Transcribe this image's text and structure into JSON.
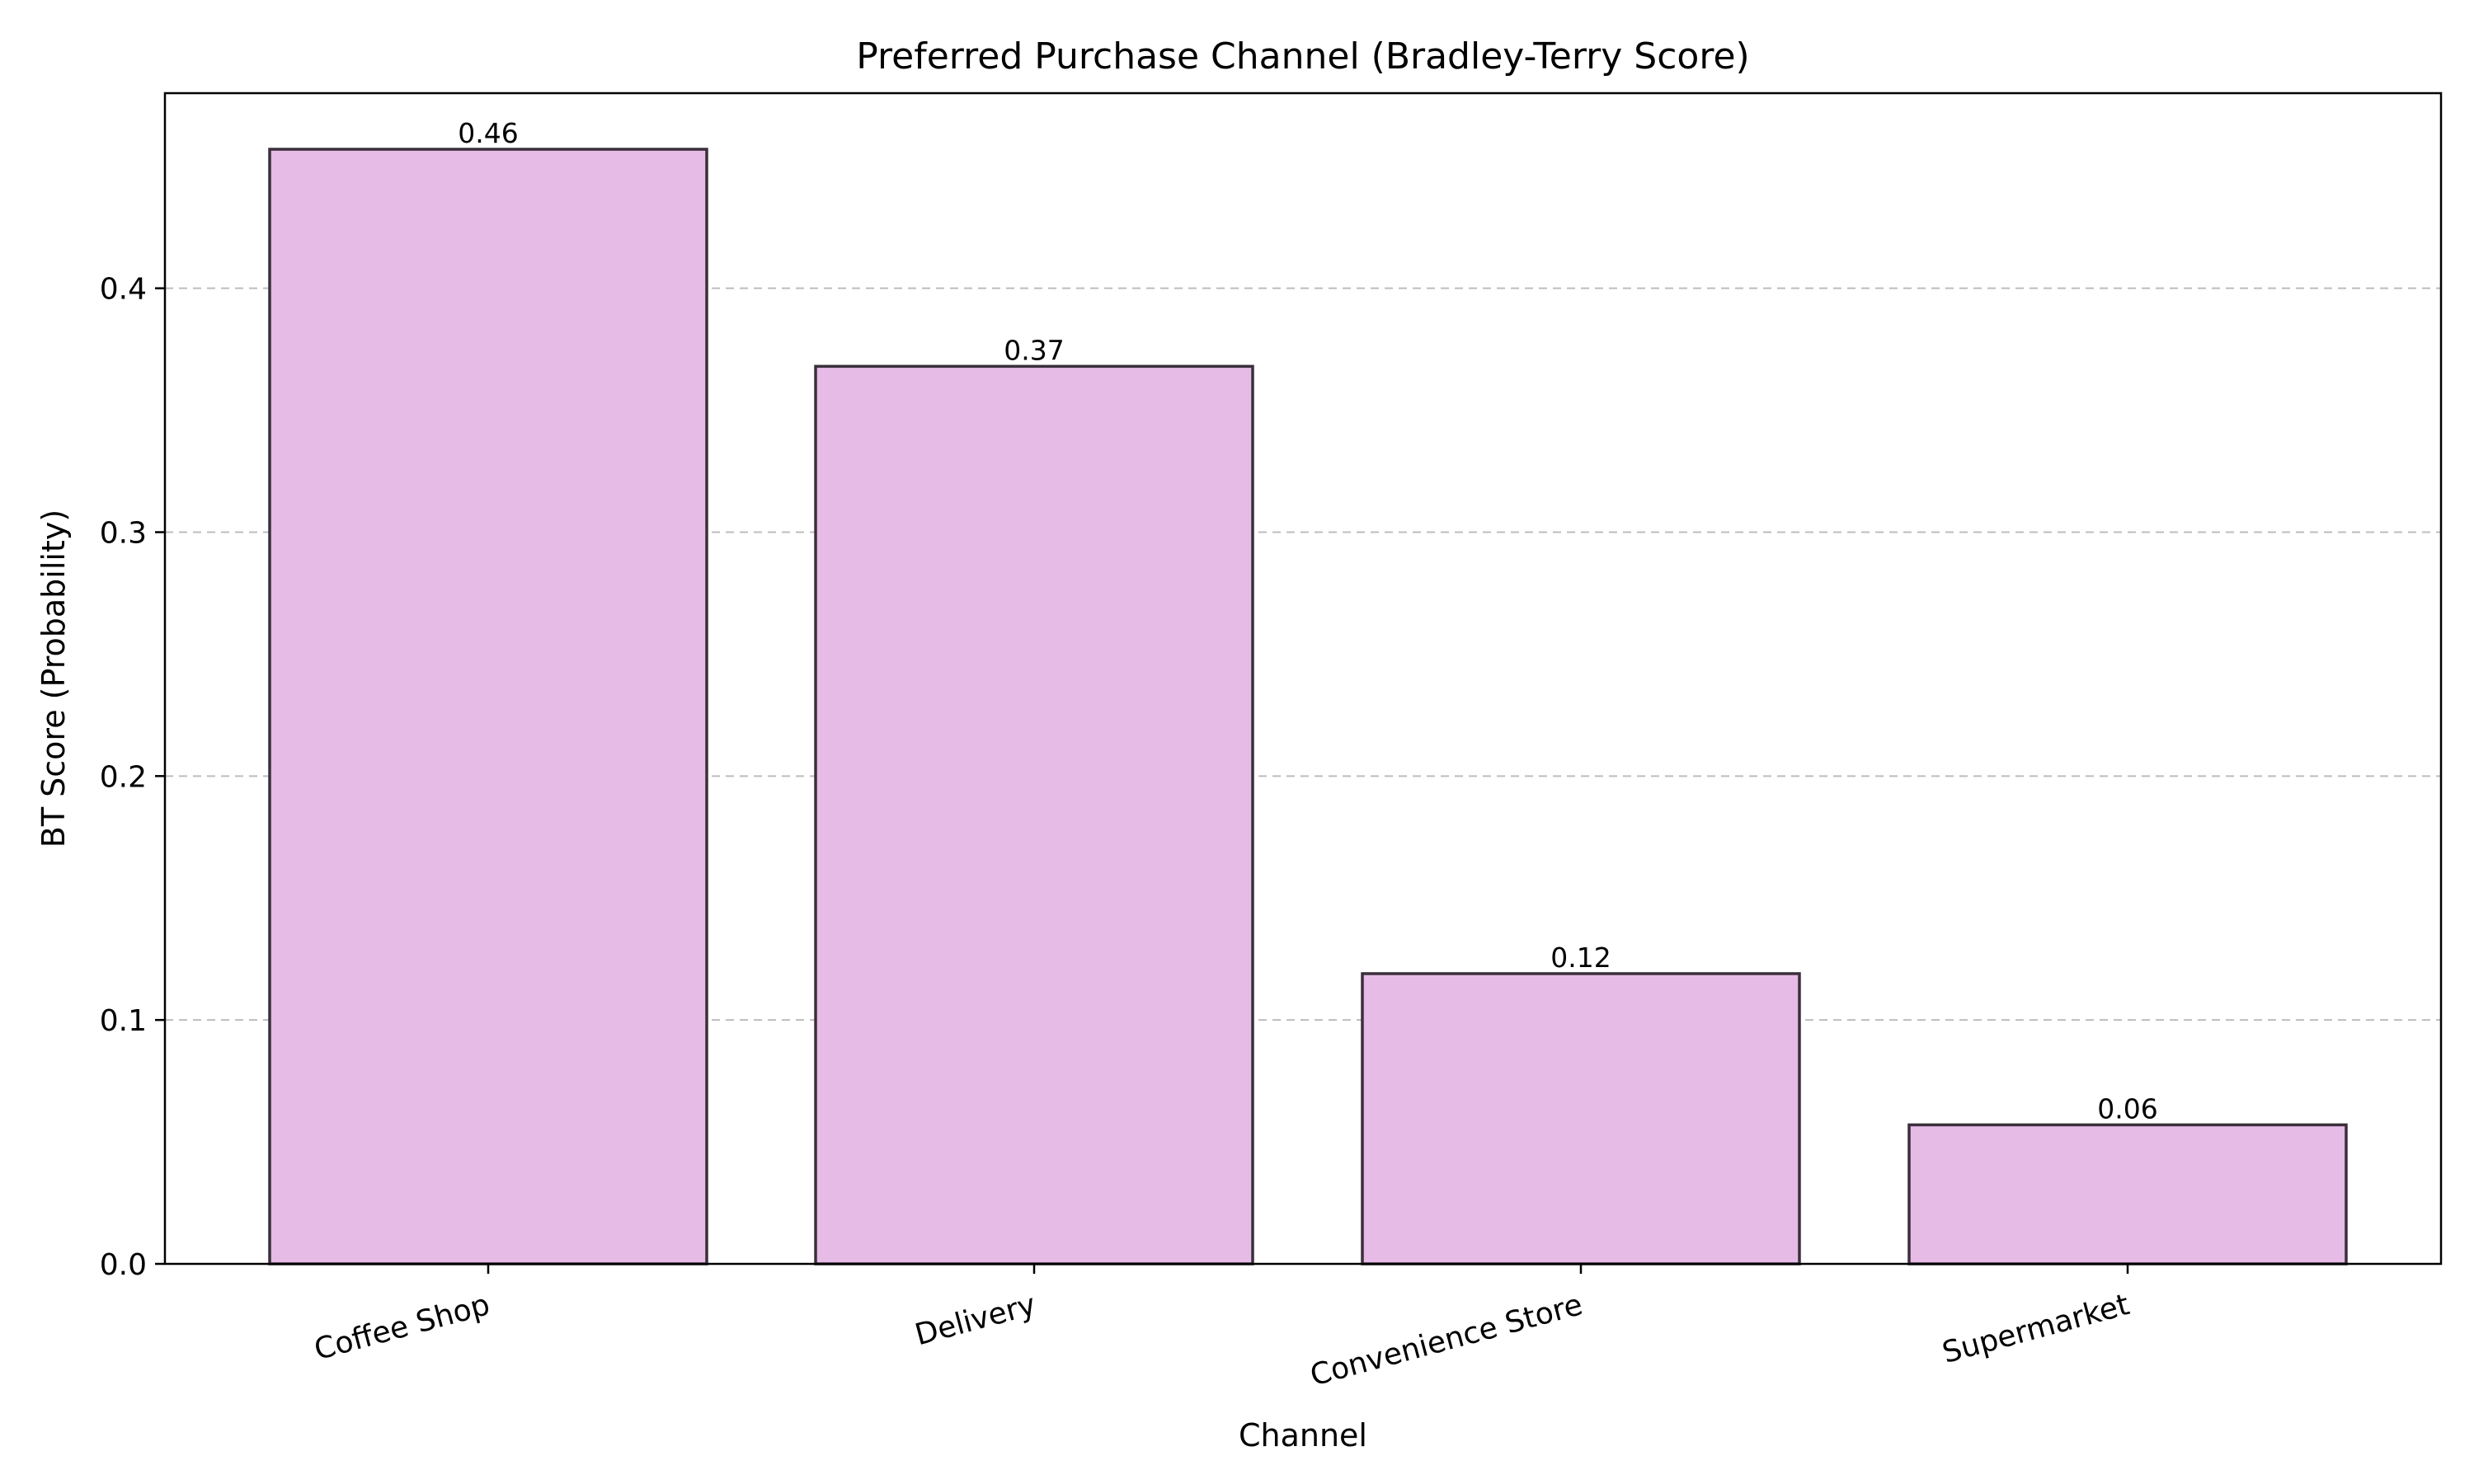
{
  "chart_data": {
    "type": "bar",
    "title": "Preferred Purchase Channel (Bradley-Terry Score)",
    "xlabel": "Channel",
    "ylabel": "BT Score (Probability)",
    "categories": [
      "Coffee Shop",
      "Delivery",
      "Convenience Store",
      "Supermarket"
    ],
    "values": [
      0.457,
      0.368,
      0.119,
      0.057
    ],
    "data_labels": [
      "0.46",
      "0.37",
      "0.12",
      "0.06"
    ],
    "ylim": [
      0,
      0.48
    ],
    "yticks": [
      0.0,
      0.1,
      0.2,
      0.3,
      0.4
    ],
    "ytick_labels": [
      "0.0",
      "0.1",
      "0.2",
      "0.3",
      "0.4"
    ],
    "grid": "y-dashed",
    "legend": "none",
    "bar_color": "#e6bbe6",
    "bar_edge_color": "#3a2f3a"
  }
}
